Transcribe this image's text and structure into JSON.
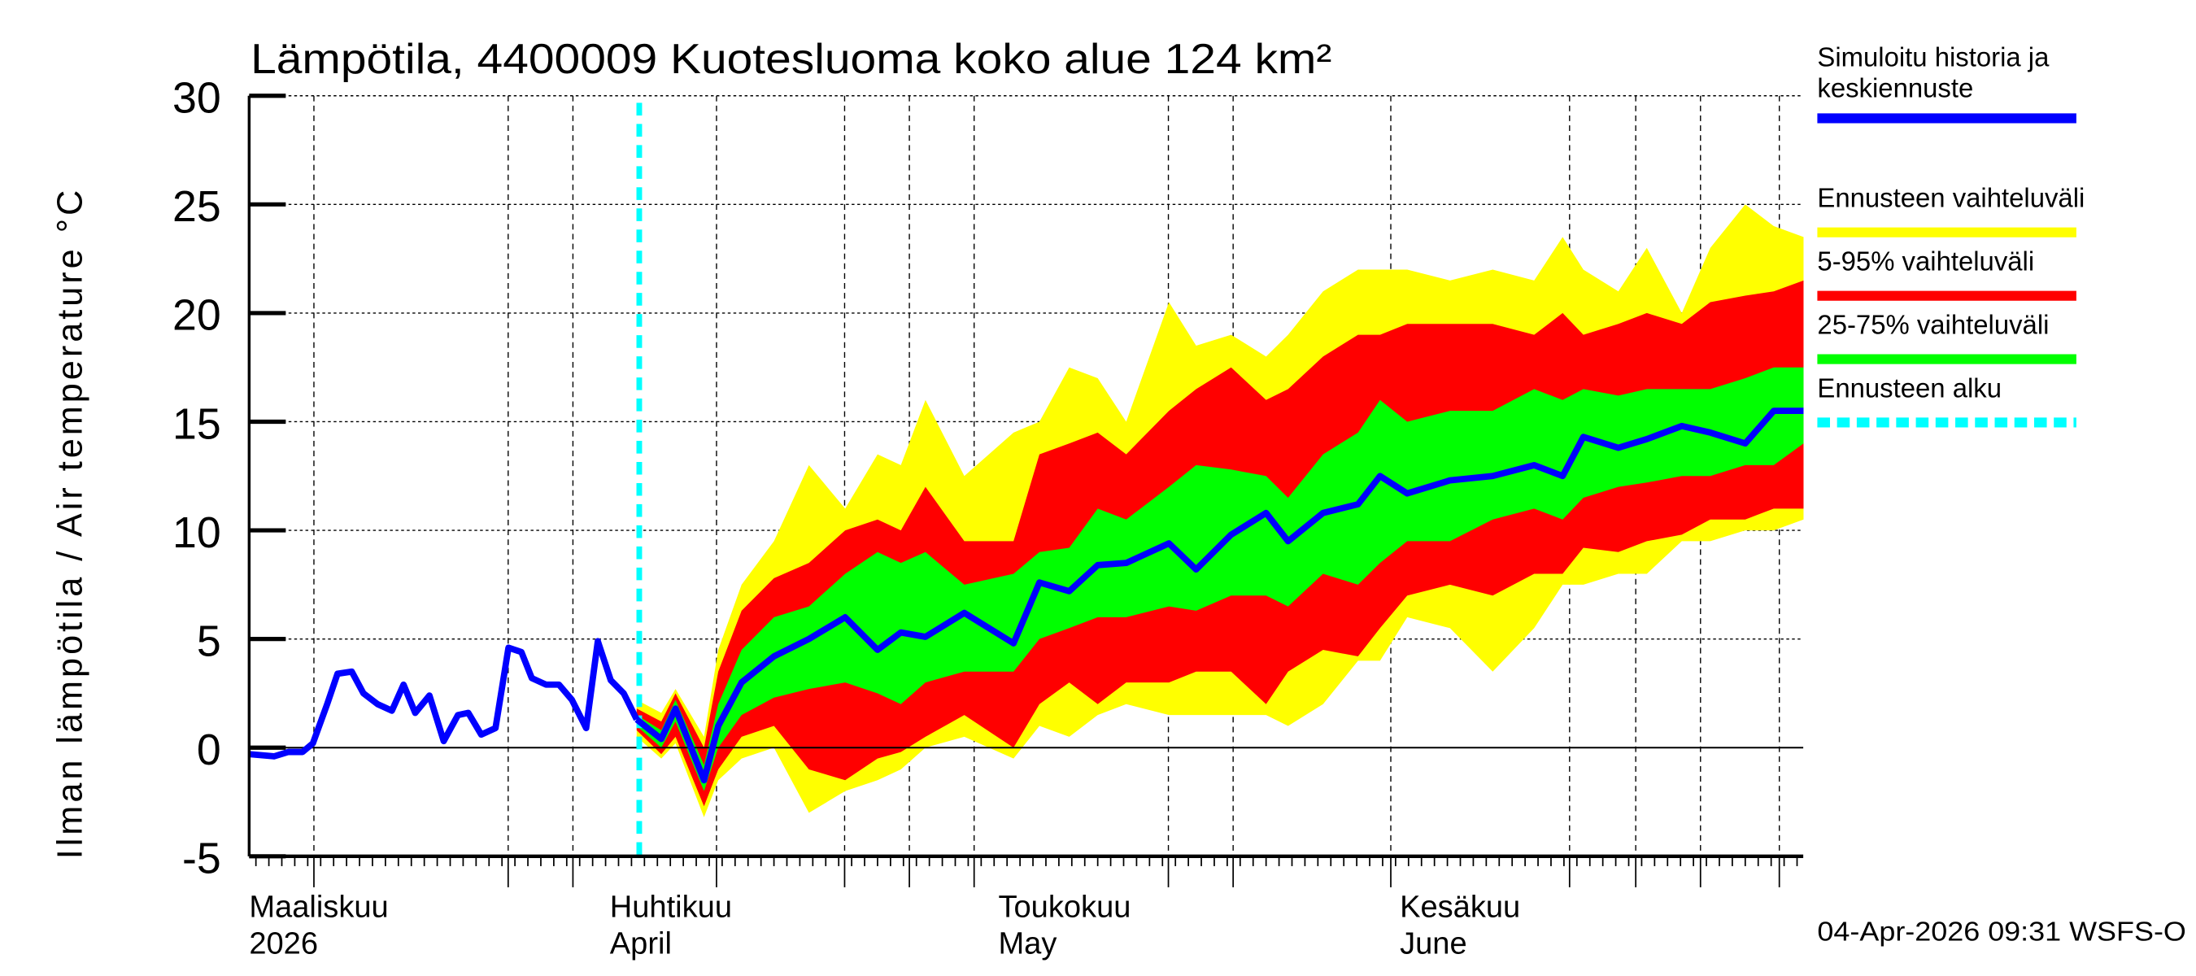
{
  "chart_data": {
    "type": "area",
    "title": "Lämpötila, 4400009 Kuotesluoma koko alue 124 km²",
    "ylabel": "Ilman lämpötila / Air temperature   °C",
    "xlabel": "",
    "ylim": [
      -5,
      30
    ],
    "yticks": [
      -5,
      0,
      5,
      10,
      15,
      20,
      25,
      30
    ],
    "x_unit": "days since 1 March 2026",
    "xlim": [
      3.5,
      123.5
    ],
    "forecast_start_day": 33.6,
    "month_labels": [
      {
        "line1": "Maaliskuu",
        "line2": "2026",
        "day": 3.5
      },
      {
        "line1": "Huhtikuu",
        "line2": "April",
        "day": 31
      },
      {
        "line1": "Toukokuu",
        "line2": "May",
        "day": 61
      },
      {
        "line1": "Kesäkuu",
        "line2": "June",
        "day": 92
      }
    ],
    "history": {
      "name": "Simuloitu historia ja keskiennuste",
      "x": [
        3.5,
        5.4,
        6.5,
        7.6,
        8.4,
        9.5,
        10.3,
        11.4,
        12.3,
        13.4,
        14.5,
        15.4,
        16.3,
        17.4,
        18.5,
        19.6,
        20.4,
        21.4,
        22.5,
        23.5,
        24.5,
        25.3,
        26.4,
        27.4,
        28.4,
        29.5,
        30.4,
        31.4,
        32.4,
        33.4
      ],
      "y": [
        -0.3,
        -0.4,
        -0.2,
        -0.2,
        0.2,
        2,
        3.4,
        3.5,
        2.5,
        2,
        1.7,
        2.9,
        1.6,
        2.4,
        0.3,
        1.5,
        1.6,
        0.6,
        0.9,
        4.6,
        4.4,
        3.2,
        2.9,
        2.9,
        2.2,
        0.9,
        4.9,
        3.1,
        2.5,
        1.3
      ]
    },
    "forecast": {
      "x": [
        33.4,
        35.3,
        36.4,
        38.6,
        39.7,
        41.5,
        44,
        46.7,
        49.5,
        52,
        53.8,
        55.7,
        58.7,
        62.5,
        64.5,
        66.8,
        69,
        71.2,
        74.5,
        76.6,
        79.3,
        82,
        83.7,
        86.4,
        89.1,
        90.8,
        92.9,
        96.2,
        99.5,
        102.7,
        104.9,
        106.5,
        109.2,
        111.4,
        114.1,
        116.3,
        119,
        121.2,
        123.5
      ],
      "median": [
        1.3,
        0.4,
        1.8,
        -1.5,
        1,
        3,
        4.2,
        5,
        6,
        4.5,
        5.3,
        5.1,
        6.2,
        4.8,
        7.6,
        7.2,
        8.4,
        8.5,
        9.4,
        8.2,
        9.8,
        10.8,
        9.5,
        10.8,
        11.2,
        12.5,
        11.7,
        12.3,
        12.5,
        13,
        12.5,
        14.3,
        13.8,
        14.2,
        14.8,
        14.5,
        14,
        15.5,
        15.5
      ],
      "p25": [
        1.0,
        0,
        1.2,
        -2,
        0,
        1.5,
        2.3,
        2.7,
        3,
        2.5,
        2,
        3,
        3.5,
        3.5,
        5,
        5.5,
        6,
        6,
        6.5,
        6.3,
        7,
        7,
        6.5,
        8,
        7.5,
        8.5,
        9.5,
        9.5,
        10.5,
        11,
        10.5,
        11.5,
        12,
        12.2,
        12.5,
        12.5,
        13,
        13,
        14
      ],
      "p75": [
        1.5,
        0.8,
        2.2,
        -0.8,
        2,
        4.5,
        6,
        6.5,
        8,
        9,
        8.5,
        9,
        7.5,
        8,
        9,
        9.2,
        11,
        10.5,
        12,
        13,
        12.8,
        12.5,
        11.5,
        13.5,
        14.5,
        16,
        15,
        15.5,
        15.5,
        16.5,
        16,
        16.5,
        16.2,
        16.5,
        16.5,
        16.5,
        17,
        17.5,
        17.5
      ],
      "p5": [
        0.8,
        -0.3,
        0.5,
        -2.7,
        -1,
        0.5,
        1,
        -1,
        -1.5,
        -0.5,
        -0.2,
        0.5,
        1.5,
        0,
        2,
        3,
        2,
        3,
        3,
        3.5,
        3.5,
        2,
        3.5,
        4.5,
        4.2,
        5.5,
        7,
        7.5,
        7,
        8,
        8,
        9.2,
        9,
        9.5,
        9.8,
        10.5,
        10.5,
        11,
        11
      ],
      "p95": [
        1.8,
        1.2,
        2.5,
        0,
        3.5,
        6.3,
        7.8,
        8.5,
        10,
        10.5,
        10,
        12,
        9.5,
        9.5,
        13.5,
        14,
        14.5,
        13.5,
        15.5,
        16.5,
        17.5,
        16,
        16.5,
        18,
        19,
        19,
        19.5,
        19.5,
        19.5,
        19,
        20,
        19,
        19.5,
        20,
        19.5,
        20.5,
        20.8,
        21,
        21.5
      ],
      "min": [
        0.5,
        -0.5,
        0.2,
        -3.2,
        -1.5,
        -0.5,
        0,
        -3,
        -2,
        -1.5,
        -1,
        0,
        0.5,
        -0.5,
        1,
        0.5,
        1.5,
        2,
        1.5,
        1.5,
        1.5,
        1.5,
        1,
        2,
        4,
        4,
        6,
        5.5,
        3.5,
        5.5,
        7.5,
        7.5,
        8,
        8,
        9.5,
        9.5,
        10,
        10,
        10.5
      ],
      "max": [
        2.2,
        1.6,
        2.7,
        0.5,
        4.5,
        7.5,
        9.5,
        13,
        11,
        13.5,
        13,
        16,
        12.5,
        14.5,
        15,
        17.5,
        17,
        15,
        20.5,
        18.5,
        19,
        18,
        19,
        21,
        22,
        22,
        22,
        21.5,
        22,
        21.5,
        23.5,
        22,
        21,
        23,
        20,
        23,
        25,
        24,
        23.5
      ]
    },
    "legend": [
      {
        "label": "Simuloitu historia ja",
        "label2": "keskiennuste",
        "color": "#0000ff",
        "style": "solid"
      },
      {
        "label": "Ennusteen vaihteluväli",
        "color": "#ffff00",
        "style": "solid"
      },
      {
        "label": "5-95% vaihteluväli",
        "color": "#ff0000",
        "style": "solid"
      },
      {
        "label": "25-75% vaihteluväli",
        "color": "#00ff00",
        "style": "solid"
      },
      {
        "label": "Ennusteen alku",
        "color": "#00ffff",
        "style": "dashed"
      }
    ],
    "legend_position": "right",
    "footer": "04-Apr-2026 09:31 WSFS-O",
    "grid": true
  }
}
